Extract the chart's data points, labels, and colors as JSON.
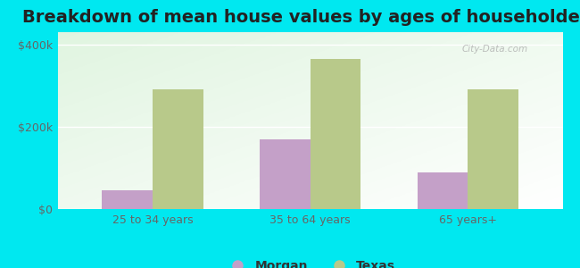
{
  "title": "Breakdown of mean house values by ages of householders",
  "categories": [
    "25 to 34 years",
    "35 to 64 years",
    "65 years+"
  ],
  "morgan_values": [
    45000,
    170000,
    90000
  ],
  "texas_values": [
    290000,
    365000,
    290000
  ],
  "morgan_color": "#c4a0c8",
  "texas_color": "#b8c98a",
  "background_outer": "#00e8f0",
  "yticks": [
    0,
    200000,
    400000
  ],
  "ytick_labels": [
    "$0",
    "$200k",
    "$400k"
  ],
  "ylim": [
    0,
    430000
  ],
  "bar_width": 0.32,
  "legend_labels": [
    "Morgan",
    "Texas"
  ],
  "title_fontsize": 14,
  "tick_fontsize": 9,
  "legend_fontsize": 10
}
